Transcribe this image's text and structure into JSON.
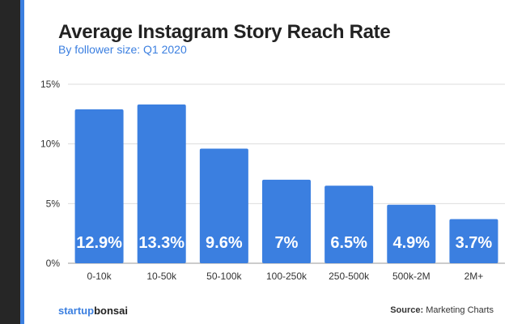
{
  "chart_data": {
    "type": "bar",
    "title": "Average Instagram Story Reach Rate",
    "subtitle": "By follower size: Q1 2020",
    "categories": [
      "0-10k",
      "10-50k",
      "50-100k",
      "100-250k",
      "250-500k",
      "500k-2M",
      "2M+"
    ],
    "values": [
      12.9,
      13.3,
      9.6,
      7,
      6.5,
      4.9,
      3.7
    ],
    "data_labels": [
      "12.9%",
      "13.3%",
      "9.6%",
      "7%",
      "6.5%",
      "4.9%",
      "3.7%"
    ],
    "yticks": [
      "0%",
      "5%",
      "10%",
      "15%"
    ],
    "ylim": [
      0,
      15
    ],
    "grid": true,
    "bar_color": "#3b7fe0"
  },
  "footer": {
    "brand_a": "startup",
    "brand_b": "bonsai",
    "source_label": "Source:",
    "source": "Marketing Charts"
  }
}
